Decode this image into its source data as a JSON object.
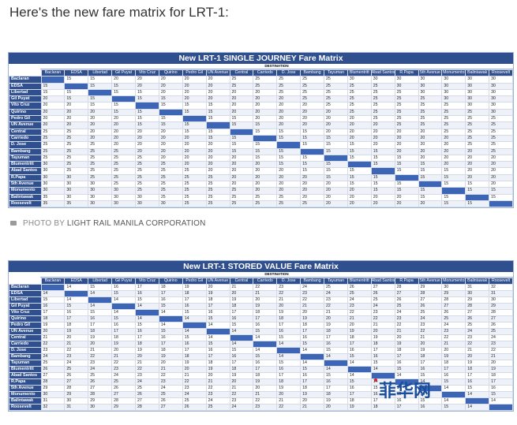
{
  "intro": "Here's the new fare matrix for LRT-1:",
  "caption": {
    "prefix": "PHOTO BY",
    "credit": "LIGHT RAIL MANILA CORPORATION"
  },
  "watermark": "菲华网",
  "stations": [
    "Baclaran",
    "EDSA",
    "Libertad",
    "Gil Puyat",
    "Vito Cruz",
    "Quirino",
    "Pedro Gil",
    "UN Avenue",
    "Central",
    "Carriedo",
    "D. Jose",
    "Bambang",
    "Tayuman",
    "Blumentritt",
    "Abad Santos",
    "R.Papa",
    "5th Avenue",
    "Monumento",
    "Balintawak",
    "Roosevelt"
  ],
  "single_journey": {
    "title": "New LRT-1 SINGLE JOURNEY Fare Matrix",
    "destination_label": "DESTINATION",
    "rows": [
      [
        "",
        "15",
        "15",
        "20",
        "20",
        "20",
        "20",
        "20",
        "25",
        "25",
        "25",
        "25",
        "25",
        "30",
        "30",
        "30",
        "30",
        "30",
        "30",
        "30"
      ],
      [
        "15",
        "",
        "15",
        "15",
        "20",
        "20",
        "20",
        "20",
        "25",
        "25",
        "25",
        "25",
        "25",
        "25",
        "25",
        "30",
        "30",
        "30",
        "30",
        "30"
      ],
      [
        "15",
        "15",
        "",
        "15",
        "15",
        "20",
        "20",
        "20",
        "20",
        "20",
        "25",
        "25",
        "25",
        "25",
        "25",
        "25",
        "30",
        "30",
        "30",
        "30"
      ],
      [
        "20",
        "15",
        "15",
        "",
        "15",
        "15",
        "20",
        "20",
        "20",
        "20",
        "20",
        "25",
        "25",
        "25",
        "25",
        "25",
        "25",
        "30",
        "30",
        "30"
      ],
      [
        "20",
        "20",
        "15",
        "15",
        "",
        "15",
        "15",
        "15",
        "20",
        "20",
        "20",
        "20",
        "25",
        "25",
        "25",
        "25",
        "25",
        "25",
        "30",
        "30"
      ],
      [
        "20",
        "20",
        "20",
        "15",
        "15",
        "",
        "15",
        "15",
        "20",
        "20",
        "20",
        "20",
        "20",
        "25",
        "25",
        "25",
        "25",
        "25",
        "25",
        "30"
      ],
      [
        "20",
        "20",
        "20",
        "20",
        "15",
        "15",
        "",
        "15",
        "15",
        "20",
        "20",
        "20",
        "20",
        "20",
        "25",
        "25",
        "25",
        "25",
        "25",
        "25"
      ],
      [
        "20",
        "20",
        "20",
        "20",
        "15",
        "15",
        "15",
        "",
        "15",
        "15",
        "20",
        "20",
        "20",
        "20",
        "20",
        "25",
        "25",
        "25",
        "25",
        "25"
      ],
      [
        "25",
        "25",
        "20",
        "20",
        "20",
        "20",
        "15",
        "15",
        "",
        "15",
        "15",
        "15",
        "20",
        "20",
        "20",
        "20",
        "20",
        "25",
        "25",
        "25"
      ],
      [
        "25",
        "25",
        "20",
        "20",
        "20",
        "20",
        "20",
        "15",
        "15",
        "",
        "15",
        "15",
        "15",
        "20",
        "20",
        "20",
        "20",
        "20",
        "25",
        "25"
      ],
      [
        "25",
        "25",
        "25",
        "20",
        "20",
        "20",
        "20",
        "20",
        "15",
        "15",
        "",
        "15",
        "15",
        "15",
        "20",
        "20",
        "20",
        "20",
        "25",
        "25"
      ],
      [
        "25",
        "25",
        "25",
        "25",
        "20",
        "20",
        "20",
        "20",
        "15",
        "15",
        "15",
        "",
        "15",
        "15",
        "15",
        "20",
        "20",
        "20",
        "20",
        "25"
      ],
      [
        "25",
        "25",
        "25",
        "25",
        "25",
        "20",
        "20",
        "20",
        "20",
        "15",
        "15",
        "15",
        "",
        "15",
        "15",
        "15",
        "20",
        "20",
        "20",
        "20"
      ],
      [
        "30",
        "25",
        "25",
        "25",
        "25",
        "25",
        "20",
        "20",
        "20",
        "20",
        "15",
        "15",
        "15",
        "",
        "15",
        "15",
        "15",
        "20",
        "20",
        "20"
      ],
      [
        "30",
        "25",
        "25",
        "25",
        "25",
        "25",
        "25",
        "20",
        "20",
        "20",
        "20",
        "15",
        "15",
        "15",
        "",
        "15",
        "15",
        "15",
        "20",
        "20"
      ],
      [
        "30",
        "30",
        "25",
        "25",
        "25",
        "25",
        "25",
        "25",
        "20",
        "20",
        "20",
        "20",
        "15",
        "15",
        "15",
        "",
        "15",
        "15",
        "20",
        "20"
      ],
      [
        "30",
        "30",
        "30",
        "25",
        "25",
        "25",
        "25",
        "25",
        "20",
        "20",
        "20",
        "20",
        "20",
        "15",
        "15",
        "15",
        "",
        "15",
        "15",
        "20"
      ],
      [
        "30",
        "30",
        "30",
        "30",
        "25",
        "25",
        "25",
        "25",
        "25",
        "20",
        "20",
        "20",
        "20",
        "20",
        "15",
        "15",
        "15",
        "",
        "15",
        "15"
      ],
      [
        "35",
        "30",
        "30",
        "30",
        "30",
        "25",
        "25",
        "25",
        "25",
        "25",
        "25",
        "20",
        "20",
        "20",
        "20",
        "20",
        "15",
        "15",
        "",
        "15"
      ],
      [
        "35",
        "35",
        "30",
        "30",
        "30",
        "30",
        "25",
        "25",
        "25",
        "25",
        "25",
        "25",
        "20",
        "20",
        "20",
        "20",
        "20",
        "15",
        "15",
        ""
      ]
    ]
  },
  "stored_value": {
    "title": "New LRT-1 STORED VALUE Fare Matrix",
    "destination_label": "DESTINATION",
    "rows": [
      [
        "",
        "14",
        "15",
        "16",
        "17",
        "18",
        "19",
        "20",
        "21",
        "22",
        "23",
        "24",
        "25",
        "26",
        "27",
        "28",
        "29",
        "30",
        "31",
        "32"
      ],
      [
        "14",
        "",
        "14",
        "15",
        "16",
        "17",
        "18",
        "19",
        "20",
        "21",
        "22",
        "23",
        "24",
        "25",
        "26",
        "27",
        "28",
        "29",
        "30",
        "31"
      ],
      [
        "15",
        "14",
        "",
        "14",
        "15",
        "16",
        "17",
        "18",
        "19",
        "20",
        "21",
        "22",
        "23",
        "24",
        "25",
        "26",
        "27",
        "28",
        "29",
        "30"
      ],
      [
        "16",
        "15",
        "14",
        "",
        "14",
        "15",
        "16",
        "17",
        "18",
        "19",
        "20",
        "21",
        "22",
        "23",
        "24",
        "25",
        "26",
        "27",
        "28",
        "29"
      ],
      [
        "17",
        "16",
        "15",
        "14",
        "",
        "14",
        "15",
        "16",
        "17",
        "18",
        "19",
        "20",
        "21",
        "22",
        "23",
        "24",
        "25",
        "26",
        "27",
        "28"
      ],
      [
        "18",
        "17",
        "16",
        "15",
        "14",
        "",
        "14",
        "15",
        "16",
        "17",
        "18",
        "19",
        "20",
        "21",
        "22",
        "23",
        "24",
        "25",
        "26",
        "27"
      ],
      [
        "19",
        "18",
        "17",
        "16",
        "15",
        "14",
        "",
        "14",
        "15",
        "16",
        "17",
        "18",
        "19",
        "20",
        "21",
        "22",
        "23",
        "24",
        "25",
        "26"
      ],
      [
        "20",
        "19",
        "18",
        "17",
        "16",
        "15",
        "14",
        "",
        "14",
        "15",
        "16",
        "17",
        "18",
        "19",
        "20",
        "21",
        "22",
        "23",
        "24",
        "25"
      ],
      [
        "21",
        "20",
        "19",
        "18",
        "17",
        "16",
        "15",
        "14",
        "",
        "14",
        "15",
        "16",
        "17",
        "18",
        "19",
        "20",
        "21",
        "22",
        "23",
        "24"
      ],
      [
        "22",
        "21",
        "20",
        "19",
        "18",
        "17",
        "16",
        "15",
        "14",
        "",
        "14",
        "15",
        "16",
        "17",
        "18",
        "19",
        "20",
        "21",
        "22",
        "23"
      ],
      [
        "23",
        "22",
        "21",
        "20",
        "19",
        "18",
        "17",
        "16",
        "15",
        "14",
        "",
        "14",
        "15",
        "16",
        "17",
        "18",
        "19",
        "20",
        "21",
        "22"
      ],
      [
        "24",
        "23",
        "22",
        "21",
        "20",
        "19",
        "18",
        "17",
        "16",
        "15",
        "14",
        "",
        "14",
        "15",
        "16",
        "17",
        "18",
        "19",
        "20",
        "21"
      ],
      [
        "25",
        "24",
        "23",
        "22",
        "21",
        "20",
        "19",
        "18",
        "17",
        "16",
        "15",
        "14",
        "",
        "14",
        "15",
        "16",
        "17",
        "18",
        "19",
        "20"
      ],
      [
        "26",
        "25",
        "24",
        "23",
        "22",
        "21",
        "20",
        "19",
        "18",
        "17",
        "16",
        "15",
        "14",
        "",
        "14",
        "15",
        "16",
        "17",
        "18",
        "19"
      ],
      [
        "27",
        "26",
        "25",
        "24",
        "23",
        "22",
        "21",
        "20",
        "19",
        "18",
        "17",
        "16",
        "15",
        "14",
        "",
        "14",
        "15",
        "16",
        "17",
        "18"
      ],
      [
        "28",
        "27",
        "26",
        "25",
        "24",
        "23",
        "22",
        "21",
        "20",
        "19",
        "18",
        "17",
        "16",
        "15",
        "14",
        "",
        "14",
        "15",
        "16",
        "17"
      ],
      [
        "29",
        "28",
        "27",
        "26",
        "25",
        "24",
        "23",
        "22",
        "21",
        "20",
        "19",
        "18",
        "17",
        "16",
        "15",
        "14",
        "",
        "14",
        "15",
        "16"
      ],
      [
        "30",
        "29",
        "28",
        "27",
        "26",
        "25",
        "24",
        "23",
        "22",
        "21",
        "20",
        "19",
        "18",
        "17",
        "16",
        "15",
        "14",
        "",
        "14",
        "15"
      ],
      [
        "31",
        "30",
        "29",
        "28",
        "27",
        "26",
        "25",
        "24",
        "23",
        "22",
        "21",
        "20",
        "19",
        "18",
        "17",
        "16",
        "15",
        "14",
        "",
        "14"
      ],
      [
        "32",
        "31",
        "30",
        "29",
        "28",
        "27",
        "26",
        "25",
        "24",
        "23",
        "22",
        "21",
        "20",
        "19",
        "18",
        "17",
        "16",
        "15",
        "14",
        ""
      ]
    ]
  }
}
